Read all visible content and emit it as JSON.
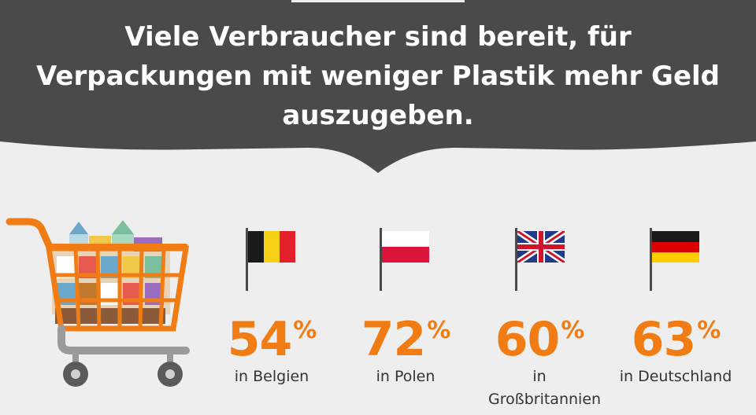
{
  "headline": [
    "Viele Verbraucher sind bereit, für",
    "Verpackungen mit weniger Plastik mehr Geld",
    "auszugeben."
  ],
  "colors": {
    "banner": "#4a4a4a",
    "background": "#eeeeee",
    "accent": "#f27c14",
    "text": "#333333"
  },
  "stats": [
    {
      "value": "54",
      "unit": "%",
      "label": "in Belgien",
      "flag": "belgium-flag-icon"
    },
    {
      "value": "72",
      "unit": "%",
      "label": "in Polen",
      "flag": "poland-flag-icon"
    },
    {
      "value": "60",
      "unit": "%",
      "label": "in Großbritannien",
      "flag": "uk-flag-icon"
    },
    {
      "value": "63",
      "unit": "%",
      "label": "in Deutschland",
      "flag": "germany-flag-icon"
    }
  ],
  "illustration": "shopping-cart-icon"
}
